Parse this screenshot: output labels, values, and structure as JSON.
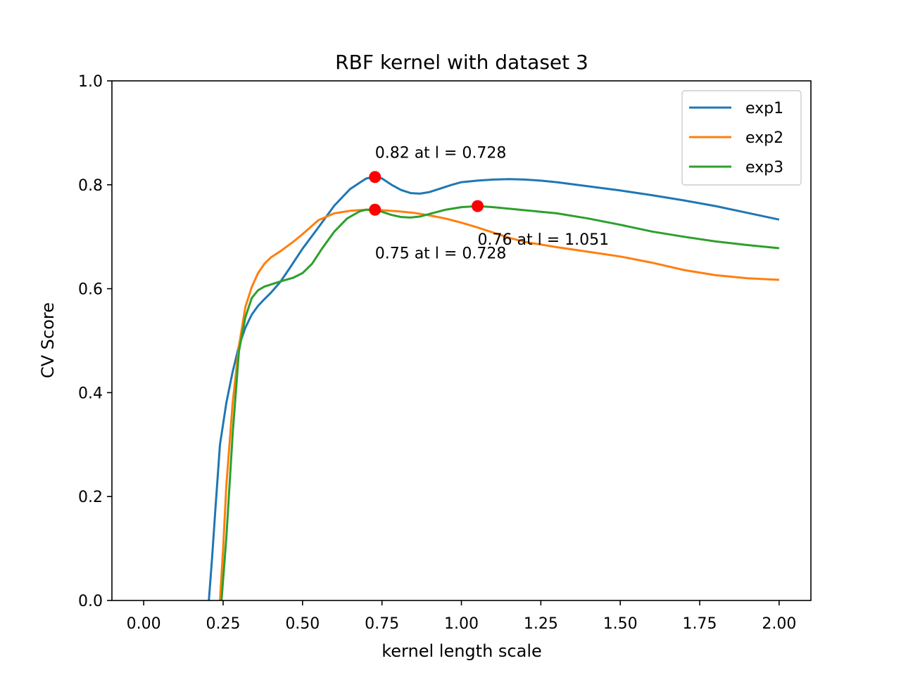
{
  "chart_data": {
    "type": "line",
    "title": "RBF kernel with dataset 3",
    "xlabel": "kernel length scale",
    "ylabel": "CV Score",
    "xlim": [
      -0.1,
      2.1
    ],
    "ylim": [
      0.0,
      1.0
    ],
    "xticks": [
      "0.00",
      "0.25",
      "0.50",
      "0.75",
      "1.00",
      "1.25",
      "1.50",
      "1.75",
      "2.00"
    ],
    "yticks": [
      "0.0",
      "0.2",
      "0.4",
      "0.6",
      "0.8",
      "1.0"
    ],
    "grid": false,
    "legend_position": "upper right",
    "series": [
      {
        "name": "exp1",
        "color": "#1f77b4",
        "x": [
          0.205,
          0.215,
          0.225,
          0.24,
          0.26,
          0.28,
          0.3,
          0.32,
          0.34,
          0.36,
          0.38,
          0.4,
          0.43,
          0.46,
          0.5,
          0.55,
          0.6,
          0.65,
          0.7,
          0.728,
          0.75,
          0.78,
          0.81,
          0.84,
          0.87,
          0.9,
          0.93,
          0.97,
          1.0,
          1.05,
          1.1,
          1.15,
          1.2,
          1.25,
          1.3,
          1.4,
          1.5,
          1.6,
          1.7,
          1.8,
          1.9,
          2.0
        ],
        "y": [
          0.0,
          0.08,
          0.17,
          0.3,
          0.38,
          0.44,
          0.49,
          0.525,
          0.55,
          0.567,
          0.58,
          0.592,
          0.613,
          0.64,
          0.677,
          0.718,
          0.76,
          0.792,
          0.812,
          0.815,
          0.812,
          0.8,
          0.79,
          0.784,
          0.783,
          0.786,
          0.792,
          0.8,
          0.805,
          0.808,
          0.81,
          0.811,
          0.81,
          0.808,
          0.805,
          0.797,
          0.789,
          0.78,
          0.77,
          0.759,
          0.746,
          0.733
        ]
      },
      {
        "name": "exp2",
        "color": "#ff7f0e",
        "x": [
          0.24,
          0.25,
          0.26,
          0.28,
          0.3,
          0.32,
          0.34,
          0.36,
          0.38,
          0.4,
          0.43,
          0.47,
          0.5,
          0.55,
          0.6,
          0.65,
          0.7,
          0.75,
          0.8,
          0.85,
          0.9,
          0.95,
          1.0,
          1.05,
          1.1,
          1.15,
          1.2,
          1.3,
          1.4,
          1.5,
          1.6,
          1.7,
          1.8,
          1.9,
          2.0
        ],
        "y": [
          0.0,
          0.1,
          0.22,
          0.38,
          0.49,
          0.565,
          0.603,
          0.63,
          0.648,
          0.66,
          0.672,
          0.69,
          0.705,
          0.732,
          0.745,
          0.75,
          0.752,
          0.751,
          0.749,
          0.746,
          0.741,
          0.735,
          0.727,
          0.718,
          0.708,
          0.698,
          0.69,
          0.68,
          0.671,
          0.662,
          0.65,
          0.636,
          0.626,
          0.62,
          0.617
        ]
      },
      {
        "name": "exp3",
        "color": "#2ca02c",
        "x": [
          0.245,
          0.26,
          0.28,
          0.3,
          0.32,
          0.34,
          0.36,
          0.38,
          0.4,
          0.43,
          0.47,
          0.5,
          0.53,
          0.56,
          0.6,
          0.64,
          0.68,
          0.7,
          0.728,
          0.75,
          0.78,
          0.81,
          0.84,
          0.87,
          0.9,
          0.95,
          1.0,
          1.051,
          1.1,
          1.2,
          1.3,
          1.4,
          1.5,
          1.6,
          1.7,
          1.8,
          1.9,
          2.0
        ],
        "y": [
          0.0,
          0.12,
          0.32,
          0.48,
          0.545,
          0.582,
          0.597,
          0.604,
          0.608,
          0.614,
          0.621,
          0.63,
          0.648,
          0.676,
          0.71,
          0.735,
          0.749,
          0.752,
          0.752,
          0.748,
          0.742,
          0.738,
          0.737,
          0.739,
          0.744,
          0.752,
          0.757,
          0.759,
          0.757,
          0.751,
          0.745,
          0.735,
          0.723,
          0.71,
          0.7,
          0.691,
          0.684,
          0.678
        ]
      }
    ],
    "annotations": [
      {
        "text": "0.82 at l = 0.728",
        "x": 0.728,
        "y": 0.815,
        "label_x": 0.728,
        "label_y": 0.852
      },
      {
        "text": "0.75 at l = 0.728",
        "x": 0.728,
        "y": 0.752,
        "label_x": 0.728,
        "label_y": 0.658
      },
      {
        "text": "0.76 at l = 1.051",
        "x": 1.051,
        "y": 0.759,
        "label_x": 1.051,
        "label_y": 0.685
      }
    ],
    "marker_color": "#ff0000"
  }
}
